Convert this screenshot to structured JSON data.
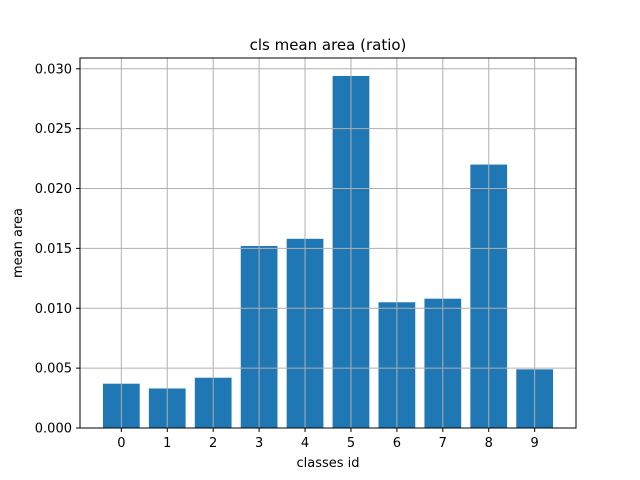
{
  "chart_data": {
    "type": "bar",
    "title": "cls mean area (ratio)",
    "xlabel": "classes id",
    "ylabel": "mean area",
    "categories": [
      "0",
      "1",
      "2",
      "3",
      "4",
      "5",
      "6",
      "7",
      "8",
      "9"
    ],
    "values": [
      0.0037,
      0.0033,
      0.0042,
      0.0152,
      0.0158,
      0.0294,
      0.0105,
      0.0108,
      0.022,
      0.0049
    ],
    "ylim": [
      0,
      0.0309
    ],
    "yticks": [
      "0.000",
      "0.005",
      "0.010",
      "0.015",
      "0.020",
      "0.025",
      "0.030"
    ],
    "grid": true,
    "bar_color": "#1f77b4",
    "grid_color": "#b0b0b0"
  }
}
